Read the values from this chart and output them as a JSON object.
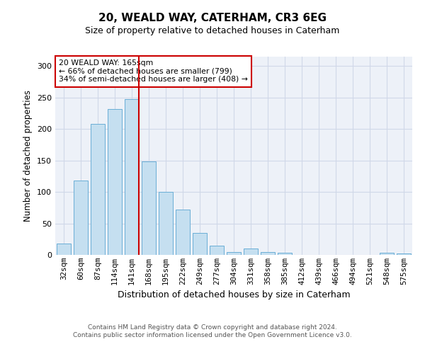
{
  "title1": "20, WEALD WAY, CATERHAM, CR3 6EG",
  "title2": "Size of property relative to detached houses in Caterham",
  "xlabel": "Distribution of detached houses by size in Caterham",
  "ylabel": "Number of detached properties",
  "categories": [
    "32sqm",
    "60sqm",
    "87sqm",
    "114sqm",
    "141sqm",
    "168sqm",
    "195sqm",
    "222sqm",
    "249sqm",
    "277sqm",
    "304sqm",
    "331sqm",
    "358sqm",
    "385sqm",
    "412sqm",
    "439sqm",
    "466sqm",
    "494sqm",
    "521sqm",
    "548sqm",
    "575sqm"
  ],
  "values": [
    18,
    118,
    208,
    232,
    248,
    148,
    100,
    72,
    35,
    15,
    5,
    10,
    4,
    3,
    0,
    0,
    0,
    0,
    0,
    3,
    2
  ],
  "bar_color": "#c5dff0",
  "bar_edge_color": "#6aaed6",
  "vline_color": "#cc0000",
  "annotation_text": "20 WEALD WAY: 165sqm\n← 66% of detached houses are smaller (799)\n34% of semi-detached houses are larger (408) →",
  "annotation_box_color": "#ffffff",
  "annotation_box_edge": "#cc0000",
  "grid_color": "#d0d8e8",
  "bg_color": "#edf1f8",
  "footer1": "Contains HM Land Registry data © Crown copyright and database right 2024.",
  "footer2": "Contains public sector information licensed under the Open Government Licence v3.0.",
  "ylim": [
    0,
    315
  ],
  "yticks": [
    0,
    50,
    100,
    150,
    200,
    250,
    300
  ]
}
